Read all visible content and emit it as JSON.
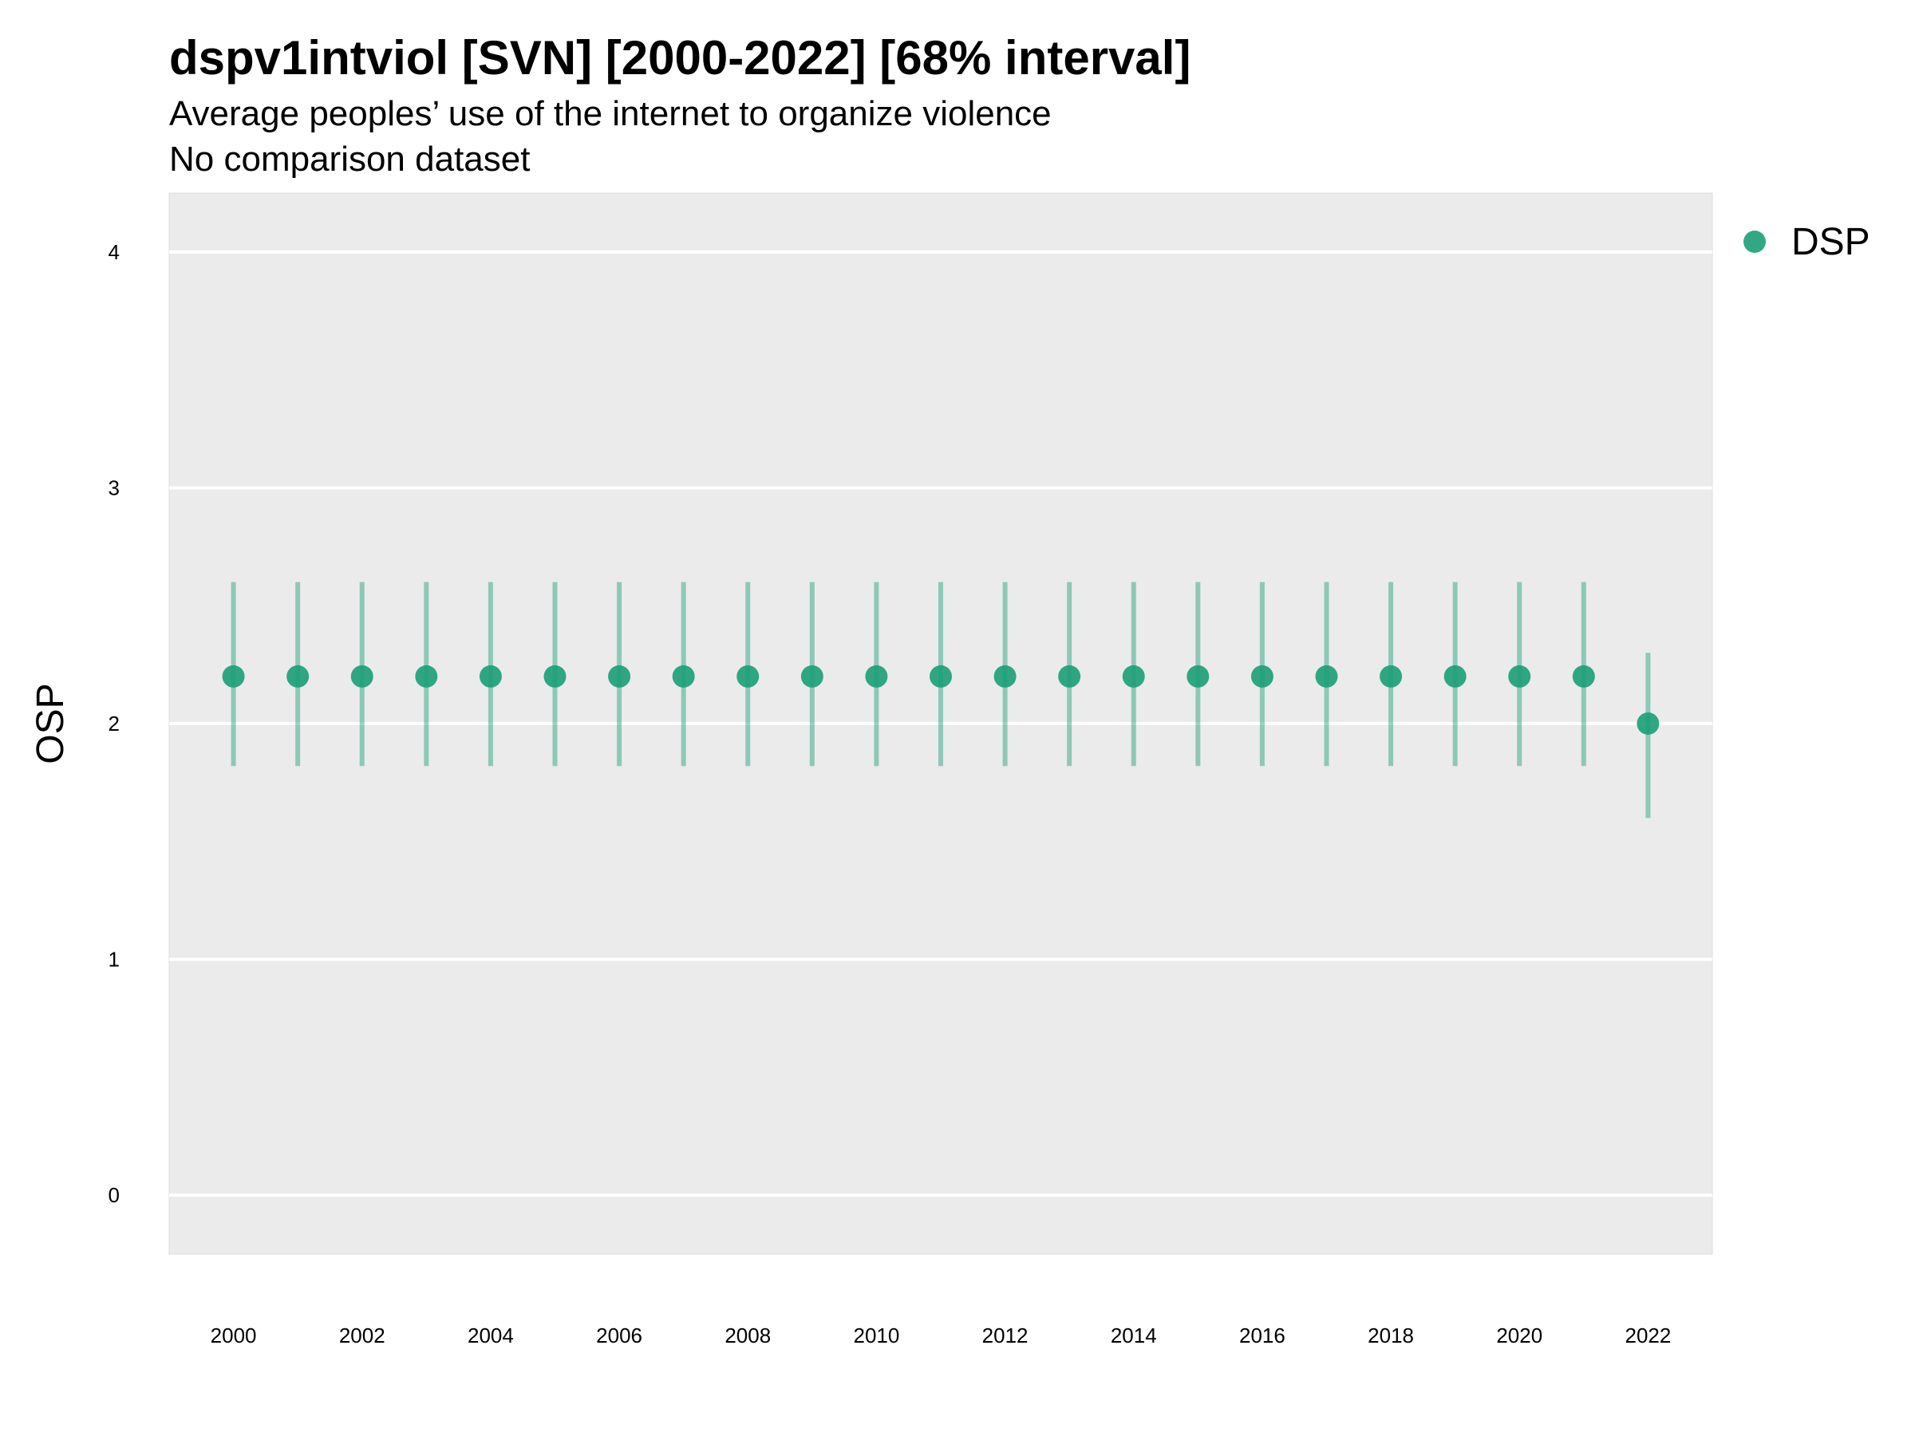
{
  "chart_data": {
    "type": "scatter",
    "title": "dspv1intviol [SVN] [2000-2022] [68% interval]",
    "subtitle": [
      "Average peoples’ use of the internet to organize violence",
      "No comparison dataset"
    ],
    "xlabel": "",
    "ylabel": "OSP",
    "xlim": [
      1999,
      2023
    ],
    "ylim": [
      -0.25,
      4.25
    ],
    "x_ticks": [
      2000,
      2002,
      2004,
      2006,
      2008,
      2010,
      2012,
      2014,
      2016,
      2018,
      2020,
      2022
    ],
    "y_ticks": [
      0,
      1,
      2,
      3,
      4
    ],
    "grid": true,
    "legend_position": "right",
    "series": [
      {
        "name": "DSP",
        "color": "#1b9e77",
        "x": [
          2000,
          2001,
          2002,
          2003,
          2004,
          2005,
          2006,
          2007,
          2008,
          2009,
          2010,
          2011,
          2012,
          2013,
          2014,
          2015,
          2016,
          2017,
          2018,
          2019,
          2020,
          2021,
          2022
        ],
        "y": [
          2.2,
          2.2,
          2.2,
          2.2,
          2.2,
          2.2,
          2.2,
          2.2,
          2.2,
          2.2,
          2.2,
          2.2,
          2.2,
          2.2,
          2.2,
          2.2,
          2.2,
          2.2,
          2.2,
          2.2,
          2.2,
          2.2,
          2.0
        ],
        "lower": [
          1.82,
          1.82,
          1.82,
          1.82,
          1.82,
          1.82,
          1.82,
          1.82,
          1.82,
          1.82,
          1.82,
          1.82,
          1.82,
          1.82,
          1.82,
          1.82,
          1.82,
          1.82,
          1.82,
          1.82,
          1.82,
          1.82,
          1.6
        ],
        "upper": [
          2.6,
          2.6,
          2.6,
          2.6,
          2.6,
          2.6,
          2.6,
          2.6,
          2.6,
          2.6,
          2.6,
          2.6,
          2.6,
          2.6,
          2.6,
          2.6,
          2.6,
          2.6,
          2.6,
          2.6,
          2.6,
          2.6,
          2.3
        ]
      }
    ]
  }
}
